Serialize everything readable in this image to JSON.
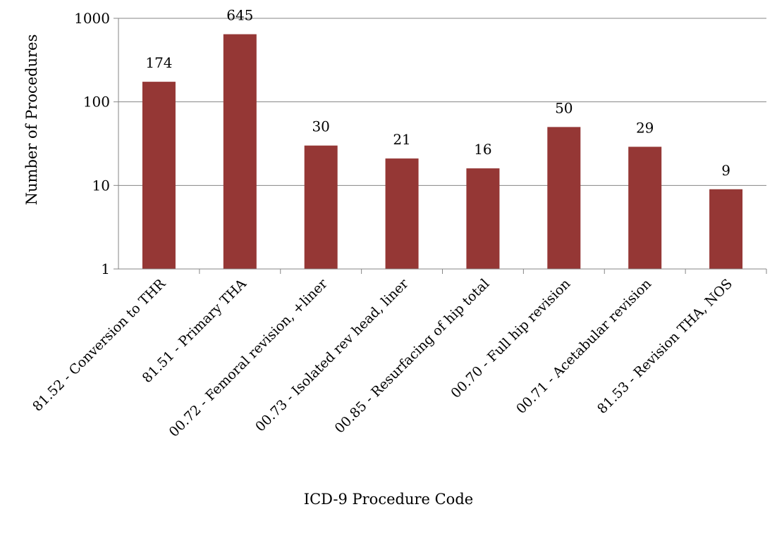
{
  "chart_data": {
    "type": "bar",
    "title": "",
    "xlabel": "ICD-9 Procedure Code",
    "ylabel": "Number of Procedures",
    "yscale": "log",
    "ylim": [
      1,
      1000
    ],
    "yticks": [
      1,
      10,
      100,
      1000
    ],
    "ytick_labels": [
      "1",
      "10",
      "100",
      "1000"
    ],
    "grid": "horizontal major gridlines",
    "legend": "none",
    "categories": [
      "81.52 - Conversion to THR",
      "81.51 - Primary THA",
      "00.72 - Femoral revision, +liner",
      "00.73 - Isolated rev head, liner",
      "00.85 - Resurfacing of hip total",
      "00.70 - Full hip revision",
      "00.71 - Acetabular revision",
      "81.53 - Revision THA, NOS"
    ],
    "values": [
      174,
      645,
      30,
      21,
      16,
      50,
      29,
      9
    ],
    "data_labels": [
      "174",
      "645",
      "30",
      "21",
      "16",
      "50",
      "29",
      "9"
    ],
    "bar_color": "#953735"
  }
}
